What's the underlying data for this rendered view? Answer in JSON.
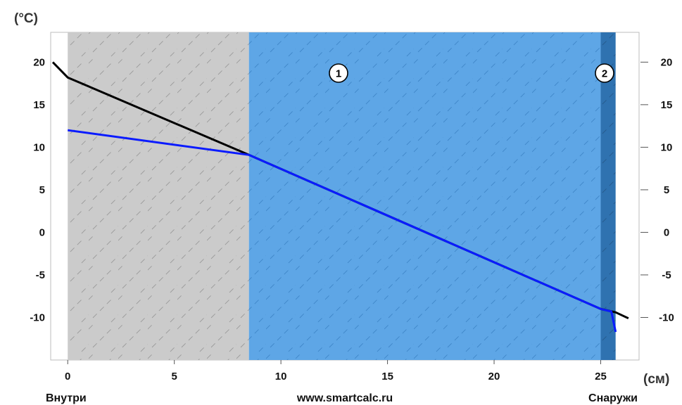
{
  "chart_data": {
    "type": "line",
    "x_unit": "(см)",
    "y_unit": "(°C)",
    "xlim": [
      -0.8,
      26.8
    ],
    "ylim": [
      -15,
      23.5
    ],
    "x_ticks": [
      0,
      5,
      10,
      15,
      20,
      25
    ],
    "y_ticks": [
      20,
      15,
      10,
      5,
      0,
      -5,
      -10
    ],
    "x_tick_labels": [
      "0",
      "5",
      "10",
      "15",
      "20",
      "25"
    ],
    "y_tick_labels": [
      "20",
      "15",
      "10",
      "5",
      "0",
      "-5",
      "-10"
    ],
    "bottom_labels": {
      "left": "Внутри",
      "center": "www.smartcalc.ru",
      "right": "Снаружи"
    },
    "layers": [
      {
        "x_start": 0,
        "x_end": 8.5,
        "color": "#cbcbcb",
        "hatch_color": "#9a9a9a",
        "label": ""
      },
      {
        "x_start": 8.5,
        "x_end": 25.0,
        "color": "#5ea6e6",
        "hatch_color": "#3f86c8",
        "label": "1"
      },
      {
        "x_start": 25.0,
        "x_end": 25.7,
        "color": "#2f72b0",
        "hatch_color": "#25598c",
        "label": "2"
      }
    ],
    "series": [
      {
        "color": "#000000",
        "x": [
          -0.7,
          0,
          8.5,
          25.0,
          25.7,
          26.3
        ],
        "y": [
          20,
          18.2,
          9.1,
          -9.0,
          -9.4,
          -10.1
        ]
      },
      {
        "color": "#0a1bff",
        "x": [
          0,
          8.5,
          25.0,
          25.5,
          25.7
        ],
        "y": [
          12,
          9.1,
          -9.0,
          -9.3,
          -11.7
        ]
      }
    ]
  }
}
